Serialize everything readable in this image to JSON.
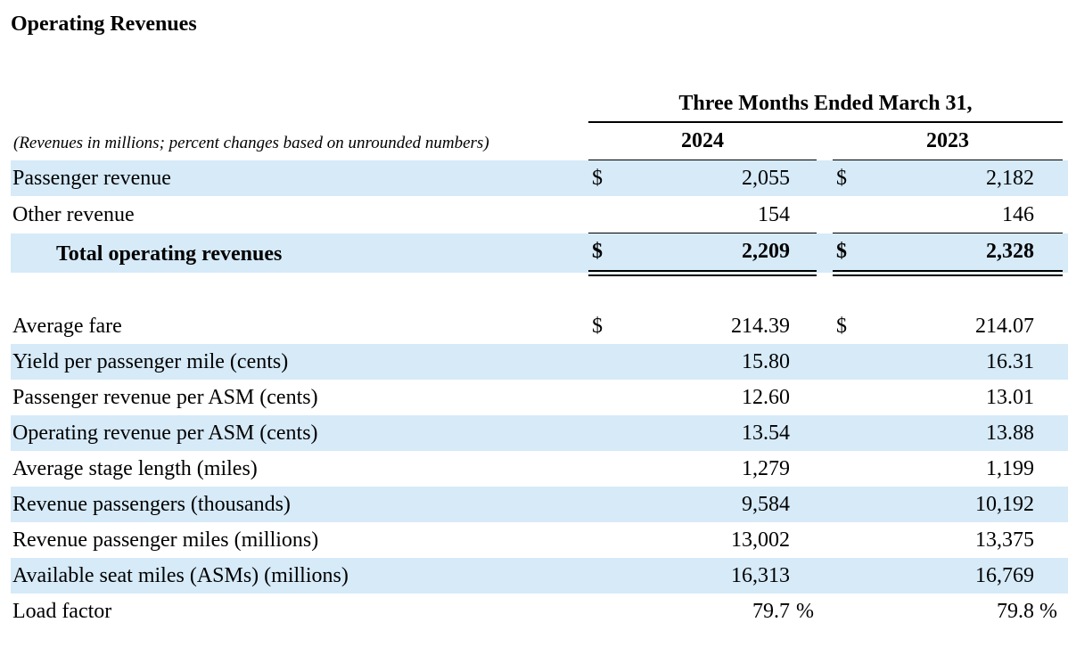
{
  "title": "Operating Revenues",
  "header": {
    "period": "Three Months Ended March 31,",
    "note": "(Revenues in millions; percent changes based on unrounded numbers)",
    "year_current": "2024",
    "year_prior": "2023"
  },
  "currency_symbol": "$",
  "percent_symbol": "%",
  "revenue_rows": [
    {
      "label": "Passenger revenue",
      "current": "2,055",
      "prior": "2,182"
    },
    {
      "label": "Other revenue",
      "current": "154",
      "prior": "146"
    },
    {
      "label": "Total operating revenues",
      "current": "2,209",
      "prior": "2,328"
    }
  ],
  "stat_rows": [
    {
      "label": "Average fare",
      "current": "214.39",
      "prior": "214.07"
    },
    {
      "label": "Yield per passenger mile (cents)",
      "current": "15.80",
      "prior": "16.31"
    },
    {
      "label": "Passenger revenue per ASM (cents)",
      "current": "12.60",
      "prior": "13.01"
    },
    {
      "label": "Operating revenue per ASM (cents)",
      "current": "13.54",
      "prior": "13.88"
    },
    {
      "label": "Average stage length (miles)",
      "current": "1,279",
      "prior": "1,199"
    },
    {
      "label": "Revenue passengers (thousands)",
      "current": "9,584",
      "prior": "10,192"
    },
    {
      "label": "Revenue passenger miles (millions)",
      "current": "13,002",
      "prior": "13,375"
    },
    {
      "label": "Available seat miles (ASMs) (millions)",
      "current": "16,313",
      "prior": "16,769"
    },
    {
      "label": "Load factor",
      "current": "79.7",
      "prior": "79.8"
    }
  ]
}
